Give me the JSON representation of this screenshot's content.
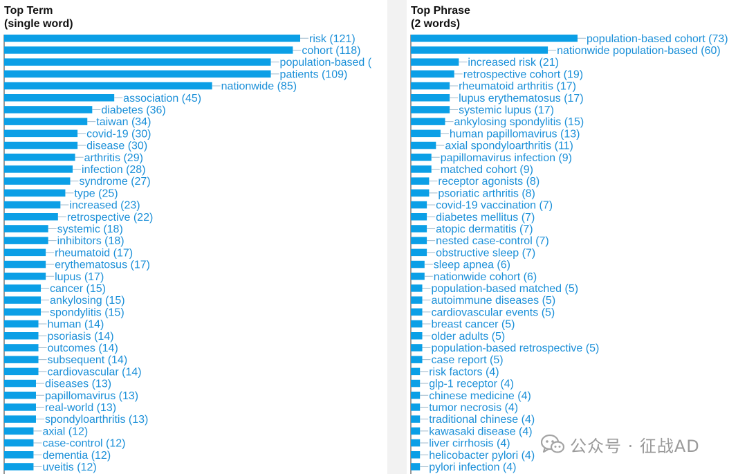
{
  "colors": {
    "bar": "#0b9fe6",
    "label": "#1a8fd8",
    "leader": "#9bb8cc",
    "axis": "#333333"
  },
  "watermark": {
    "icon": "wechat-icon",
    "text": "公众号 · 征战AD"
  },
  "chart_data": [
    {
      "type": "bar",
      "orientation": "horizontal",
      "title": [
        "Top Term",
        "(single word)"
      ],
      "xlim": [
        0,
        121
      ],
      "categories": [
        "risk",
        "cohort",
        "population-based",
        "patients",
        "nationwide",
        "association",
        "diabetes",
        "taiwan",
        "covid-19",
        "disease",
        "arthritis",
        "infection",
        "syndrome",
        "type",
        "increased",
        "retrospective",
        "systemic",
        "inhibitors",
        "rheumatoid",
        "erythematosus",
        "lupus",
        "cancer",
        "ankylosing",
        "spondylitis",
        "human",
        "psoriasis",
        "outcomes",
        "subsequent",
        "cardiovascular",
        "diseases",
        "papillomavirus",
        "real-world",
        "spondyloarthritis",
        "axial",
        "case-control",
        "dementia",
        "uveitis"
      ],
      "values": [
        121,
        118,
        109,
        109,
        85,
        45,
        36,
        34,
        30,
        30,
        29,
        28,
        27,
        25,
        23,
        22,
        18,
        18,
        17,
        17,
        17,
        15,
        15,
        15,
        14,
        14,
        14,
        14,
        14,
        13,
        13,
        13,
        13,
        12,
        12,
        12,
        12
      ],
      "labels": [
        "risk (121)",
        "cohort (118)",
        "population-based (",
        "patients (109)",
        "nationwide (85)",
        "association (45)",
        "diabetes (36)",
        "taiwan (34)",
        "covid-19 (30)",
        "disease (30)",
        "arthritis (29)",
        "infection (28)",
        "syndrome (27)",
        "type (25)",
        "increased (23)",
        "retrospective (22)",
        "systemic (18)",
        "inhibitors (18)",
        "rheumatoid (17)",
        "erythematosus (17)",
        "lupus (17)",
        "cancer (15)",
        "ankylosing (15)",
        "spondylitis (15)",
        "human (14)",
        "psoriasis (14)",
        "outcomes (14)",
        "subsequent (14)",
        "cardiovascular (14)",
        "diseases (13)",
        "papillomavirus (13)",
        "real-world (13)",
        "spondyloarthritis (13)",
        "axial (12)",
        "case-control (12)",
        "dementia (12)",
        "uveitis (12)"
      ]
    },
    {
      "type": "bar",
      "orientation": "horizontal",
      "title": [
        "Top Phrase",
        "(2 words)"
      ],
      "xlim": [
        0,
        73
      ],
      "categories": [
        "population-based cohort",
        "nationwide population-based",
        "increased risk",
        "retrospective cohort",
        "rheumatoid arthritis",
        "lupus erythematosus",
        "systemic lupus",
        "ankylosing spondylitis",
        "human papillomavirus",
        "axial spondyloarthritis",
        "papillomavirus infection",
        "matched cohort",
        "receptor agonists",
        "psoriatic arthritis",
        "covid-19 vaccination",
        "diabetes mellitus",
        "atopic dermatitis",
        "nested case-control",
        "obstructive sleep",
        "sleep apnea",
        "nationwide cohort",
        "population-based matched",
        "autoimmune diseases",
        "cardiovascular events",
        "breast cancer",
        "older adults",
        "population-based retrospective",
        "case report",
        "risk factors",
        "glp-1 receptor",
        "chinese medicine",
        "tumor necrosis",
        "traditional chinese",
        "kawasaki disease",
        "liver cirrhosis",
        "helicobacter pylori",
        "pylori infection"
      ],
      "values": [
        73,
        60,
        21,
        19,
        17,
        17,
        17,
        15,
        13,
        11,
        9,
        9,
        8,
        8,
        7,
        7,
        7,
        7,
        7,
        6,
        6,
        5,
        5,
        5,
        5,
        5,
        5,
        5,
        4,
        4,
        4,
        4,
        4,
        4,
        4,
        4,
        4
      ],
      "labels": [
        "population-based cohort (73)",
        "nationwide population-based (60)",
        "increased risk (21)",
        "retrospective cohort (19)",
        "rheumatoid arthritis (17)",
        "lupus erythematosus (17)",
        "systemic lupus (17)",
        "ankylosing spondylitis (15)",
        "human papillomavirus (13)",
        "axial spondyloarthritis (11)",
        "papillomavirus infection (9)",
        "matched cohort (9)",
        "receptor agonists (8)",
        "psoriatic arthritis (8)",
        "covid-19 vaccination (7)",
        "diabetes mellitus (7)",
        "atopic dermatitis (7)",
        "nested case-control (7)",
        "obstructive sleep (7)",
        "sleep apnea (6)",
        "nationwide cohort (6)",
        "population-based matched (5)",
        "autoimmune diseases (5)",
        "cardiovascular events (5)",
        "breast cancer (5)",
        "older adults (5)",
        "population-based retrospective (5)",
        "case report (5)",
        "risk factors (4)",
        "glp-1 receptor (4)",
        "chinese medicine (4)",
        "tumor necrosis (4)",
        "traditional chinese (4)",
        "kawasaki disease (4)",
        "liver cirrhosis (4)",
        "helicobacter pylori (4)",
        "pylori infection (4)"
      ]
    }
  ]
}
